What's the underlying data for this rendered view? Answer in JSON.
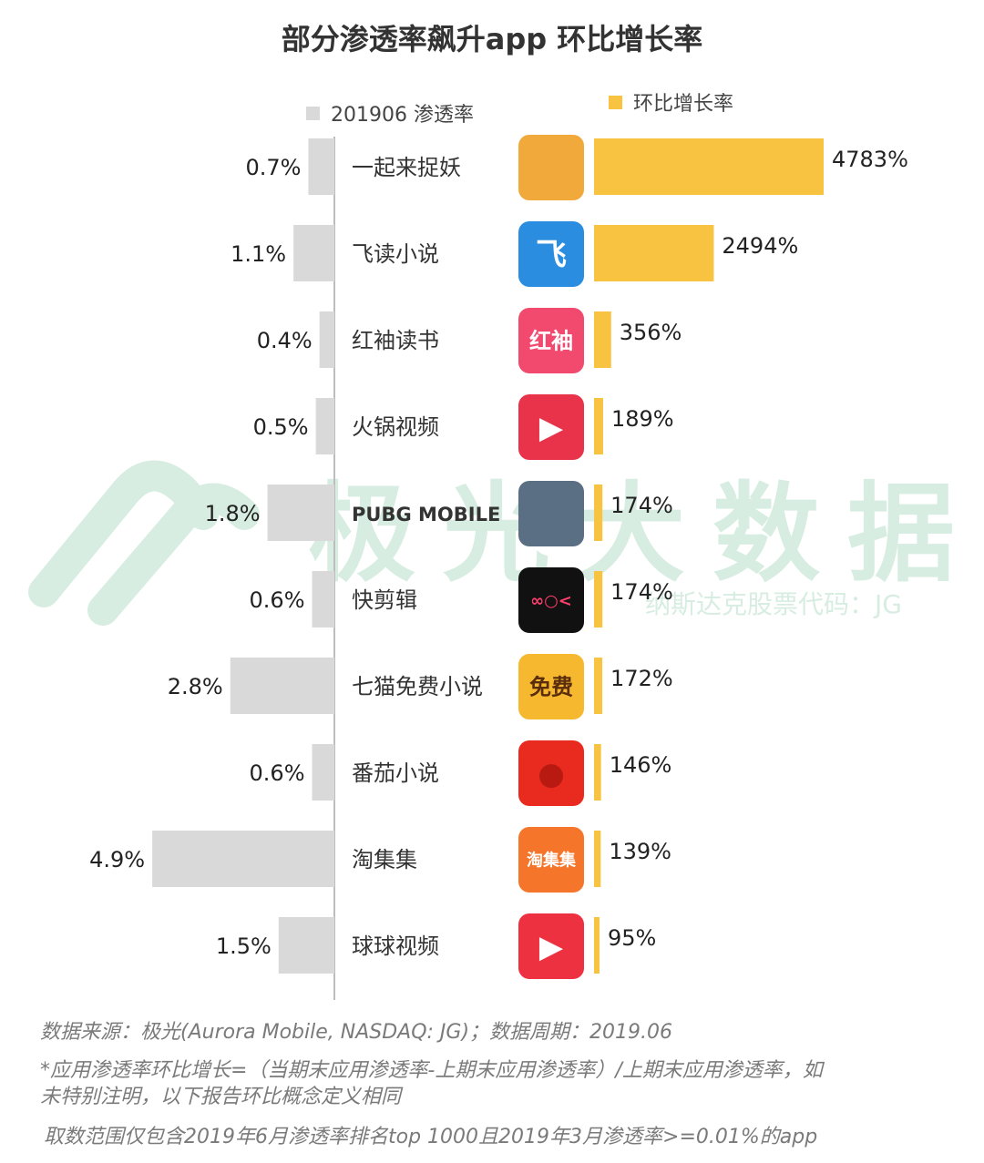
{
  "title": "部分渗透率飙升app 环比增长率",
  "legend": {
    "penetration": "201906 渗透率",
    "growth": "环比增长率"
  },
  "colors": {
    "penetration_bar": "#d9d9d9",
    "growth_bar": "#f7c340",
    "watermark": "#4caf7a"
  },
  "watermark": {
    "text": "极光大数据",
    "subtext": "纳斯达克股票代码：JG"
  },
  "chart_data": {
    "type": "bar",
    "categories": [
      "一起来捉妖",
      "飞读小说",
      "红袖读书",
      "火锅视频",
      "PUBG MOBILE",
      "快剪辑",
      "七猫免费小说",
      "番茄小说",
      "淘集集",
      "球球视频"
    ],
    "series": [
      {
        "name": "201906 渗透率",
        "values": [
          0.7,
          1.1,
          0.4,
          0.5,
          1.8,
          0.6,
          2.8,
          0.6,
          4.9,
          1.5
        ],
        "labels": [
          "0.7%",
          "1.1%",
          "0.4%",
          "0.5%",
          "1.8%",
          "0.6%",
          "2.8%",
          "0.6%",
          "4.9%",
          "1.5%"
        ]
      },
      {
        "name": "环比增长率",
        "values": [
          4783,
          2494,
          356,
          189,
          174,
          174,
          172,
          146,
          139,
          95
        ],
        "labels": [
          "4783%",
          "2494%",
          "356%",
          "189%",
          "174%",
          "174%",
          "172%",
          "146%",
          "139%",
          "95%"
        ]
      }
    ],
    "icons": [
      {
        "name": "yiqilaizhuoyao-app-icon",
        "bg": "#f2a93b",
        "glyph": "",
        "fg": "#ffffff"
      },
      {
        "name": "feidu-app-icon",
        "bg": "#2a8de0",
        "glyph": "飞",
        "fg": "#ffffff"
      },
      {
        "name": "hongxiu-app-icon",
        "bg": "#f24a6e",
        "glyph": "红袖",
        "fg": "#ffffff"
      },
      {
        "name": "huoguo-app-icon",
        "bg": "#e8334a",
        "glyph": "▶",
        "fg": "#ffffff"
      },
      {
        "name": "pubg-app-icon",
        "bg": "#5b6f84",
        "glyph": "",
        "fg": "#ffffff"
      },
      {
        "name": "kuaijianji-app-icon",
        "bg": "#111111",
        "glyph": "∞○<",
        "fg": "#ff3f6c"
      },
      {
        "name": "qimao-app-icon",
        "bg": "#f5b82e",
        "glyph": "免费",
        "fg": "#5a2d0c"
      },
      {
        "name": "fanqie-app-icon",
        "bg": "#e92b1f",
        "glyph": "●",
        "fg": "#b81a12"
      },
      {
        "name": "taojiji-app-icon",
        "bg": "#f5752a",
        "glyph": "淘集集",
        "fg": "#ffffff"
      },
      {
        "name": "qiuqiu-app-icon",
        "bg": "#ee3140",
        "glyph": "▶",
        "fg": "#ffffff"
      }
    ]
  },
  "notes": {
    "source": "数据来源：极光(Aurora Mobile, NASDAQ: JG)；数据周期：2019.06",
    "definition_line1": "*应用渗透率环比增长=（当期末应用渗透率-上期末应用渗透率）/上期末应用渗透率，如",
    "definition_line2": "未特别注明，以下报告环比概念定义相同",
    "scope": "取数范围仅包含2019年6月渗透率排名top 1000且2019年3月渗透率>=0.01%的app"
  }
}
